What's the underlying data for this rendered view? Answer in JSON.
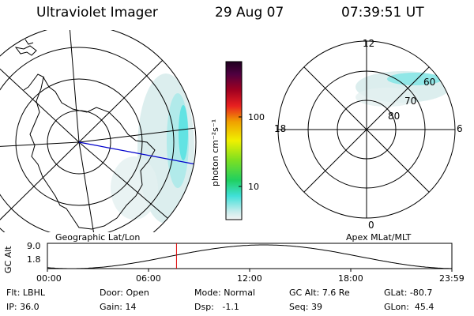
{
  "header": {
    "title": "Ultraviolet Imager",
    "date": "29 Aug 07",
    "time": "07:39:51 UT"
  },
  "left_panel": {
    "caption": "Geographic Lat/Lon"
  },
  "right_panel": {
    "caption": "Apex MLat/MLT",
    "mlt_labels": {
      "top": "12",
      "left": "18",
      "right": "6",
      "bottom": "0"
    },
    "lat_labels": [
      "60",
      "70",
      "80"
    ]
  },
  "colorbar": {
    "unit_label": "photon cm⁻²s⁻¹",
    "ticks": [
      "100",
      "10"
    ]
  },
  "alt_plot": {
    "ylabel": "GC Alt",
    "y_ticks": [
      "9.0",
      "1.8"
    ],
    "x_ticks": [
      "00:00",
      "06:00",
      "12:00",
      "18:00",
      "23:59"
    ],
    "current_time_hours": 7.66
  },
  "info": {
    "filter_label": "Flt:",
    "filter_value": "LBHL",
    "ip_label": "IP:",
    "ip_value": "36.0",
    "door_label": "Door:",
    "door_value": "Open",
    "gain_label": "Gain:",
    "gain_value": "14",
    "mode_label": "Mode:",
    "mode_value": "Normal",
    "dsp_label": "Dsp:",
    "dsp_value": "-1.1",
    "gcalt_label": "GC Alt:",
    "gcalt_value": "7.6 Re",
    "seq_label": "Seq:",
    "seq_value": "39",
    "glat_label": "GLat:",
    "glat_value": "-80.7",
    "glon_label": "GLon:",
    "glon_value": "45.4"
  },
  "colors": {
    "accent_line": "#0000cc",
    "time_marker": "#dd0000"
  }
}
